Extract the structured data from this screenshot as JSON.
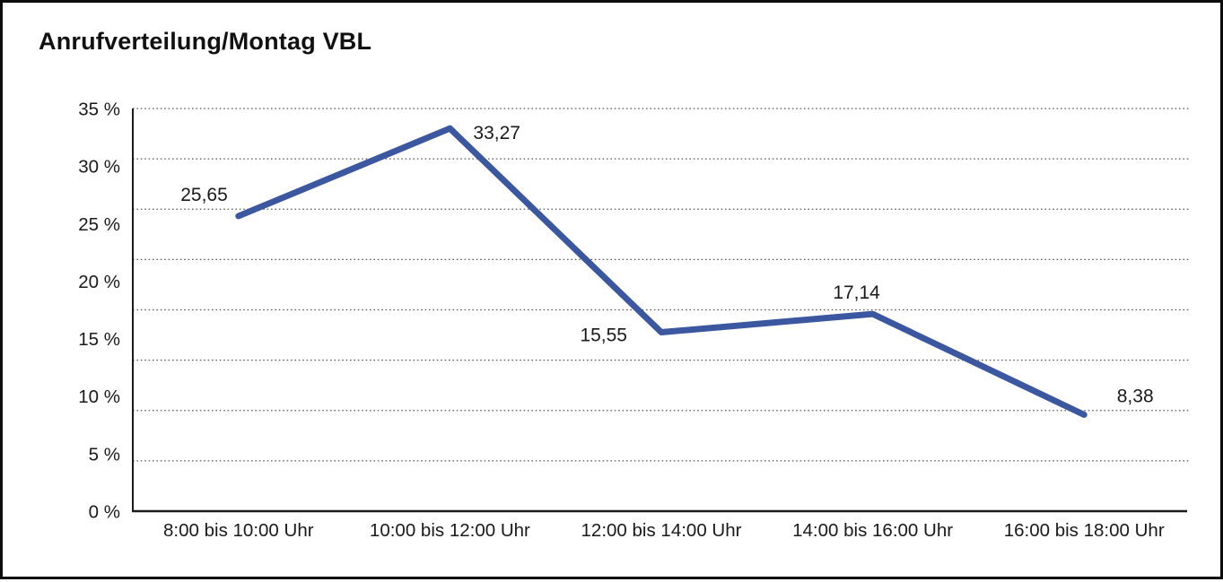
{
  "header": {
    "title": "Anrufverteilung/Montag VBL"
  },
  "chart_data": {
    "type": "line",
    "title": "Anrufverteilung/Montag VBL",
    "categories": [
      "8:00 bis 10:00 Uhr",
      "10:00 bis 12:00 Uhr",
      "12:00 bis 14:00 Uhr",
      "14:00 bis 16:00 Uhr",
      "16:00 bis 18:00 Uhr"
    ],
    "series": [
      {
        "name": "Anrufverteilung Montag VBL",
        "values": [
          25.65,
          33.27,
          15.55,
          17.14,
          8.38
        ]
      }
    ],
    "point_labels": [
      "25,65",
      "33,27",
      "15,55",
      "17,14",
      "8,38"
    ],
    "xlabel": "",
    "ylabel": "",
    "ylim": [
      0,
      35
    ],
    "ytick_step": 5,
    "ytick_labels": [
      "0 %",
      "5 %",
      "10 %",
      "15 %",
      "20 %",
      "25 %",
      "30 %",
      "35 %"
    ],
    "grid": "horizontal-dotted",
    "legend_position": "none",
    "colors": {
      "line": "#3A57A0",
      "text": "#1A1A1A",
      "gridline": "#595959",
      "axis": "#1A1A1A"
    }
  }
}
